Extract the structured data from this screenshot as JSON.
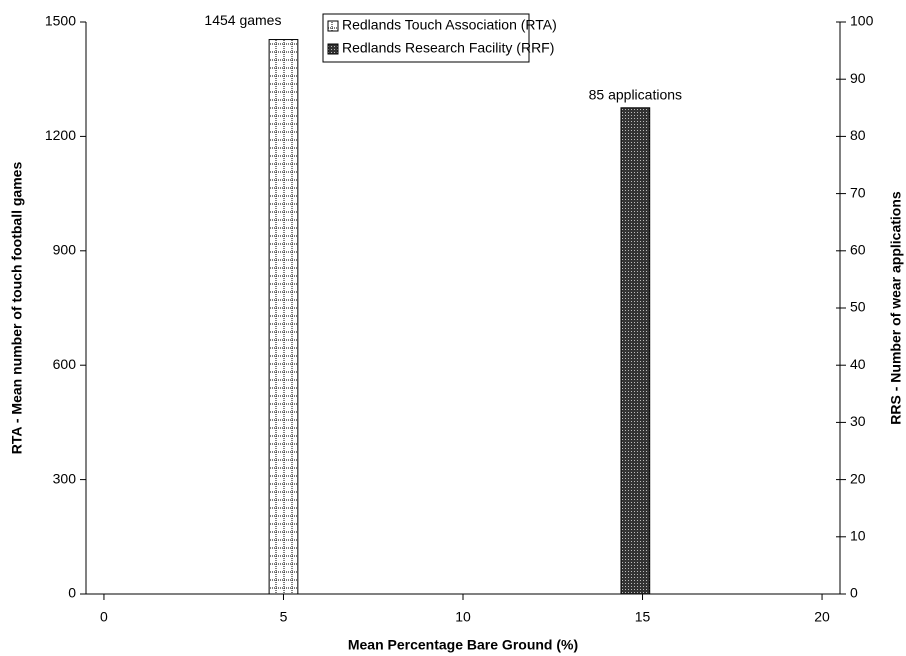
{
  "chart_data": {
    "type": "bar",
    "x_label": "Mean Percentage Bare Ground (%)",
    "y_label": "RTA - Mean number of touch football games",
    "y2_label": "RRS - Number of wear applications",
    "xlim": [
      -0.5,
      20.5
    ],
    "xticks": [
      0,
      5,
      10,
      15,
      20
    ],
    "ylim": [
      0,
      1500
    ],
    "yticks": [
      0,
      300,
      600,
      900,
      1200,
      1500
    ],
    "y2lim": [
      0,
      100
    ],
    "y2ticks": [
      0,
      10,
      20,
      30,
      40,
      50,
      60,
      70,
      80,
      90,
      100
    ],
    "grid": false,
    "legend": "top",
    "series": [
      {
        "name": "Redlands Touch Association (RTA)",
        "pattern": "dotted-grid",
        "color": "#ffffff",
        "x": [
          5
        ],
        "values": [
          1454
        ],
        "value_labels": [
          "1454 games"
        ]
      },
      {
        "name": "Redlands Research Facility (RRF)",
        "pattern": "dense-dots",
        "color": "#444444",
        "axis": "y2",
        "x": [
          14.8
        ],
        "values": [
          85
        ],
        "value_labels": [
          "85 applications"
        ]
      }
    ]
  }
}
